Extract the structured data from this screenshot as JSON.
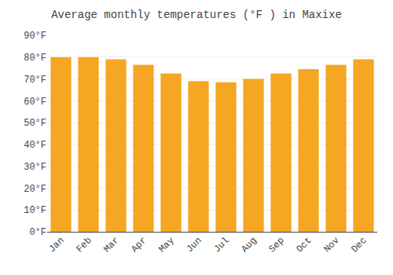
{
  "chart_data": {
    "type": "bar",
    "title": "Average monthly temperatures (°F ) in Maxixe",
    "categories": [
      "Jan",
      "Feb",
      "Mar",
      "Apr",
      "May",
      "Jun",
      "Jul",
      "Aug",
      "Sep",
      "Oct",
      "Nov",
      "Dec"
    ],
    "values": [
      80,
      80,
      79,
      76.5,
      72.5,
      69,
      68.5,
      70,
      72.5,
      74.5,
      76.5,
      79
    ],
    "color": "#F5A623",
    "ylim": [
      0,
      90
    ],
    "yticks": [
      {
        "value": 0,
        "label": "0°F"
      },
      {
        "value": 10,
        "label": "10°F"
      },
      {
        "value": 20,
        "label": "20°F"
      },
      {
        "value": 30,
        "label": "30°F"
      },
      {
        "value": 40,
        "label": "40°F"
      },
      {
        "value": 50,
        "label": "50°F"
      },
      {
        "value": 60,
        "label": "60°F"
      },
      {
        "value": 70,
        "label": "70°F"
      },
      {
        "value": 80,
        "label": "80°F"
      },
      {
        "value": 90,
        "label": "90°F"
      }
    ],
    "grid": true
  }
}
